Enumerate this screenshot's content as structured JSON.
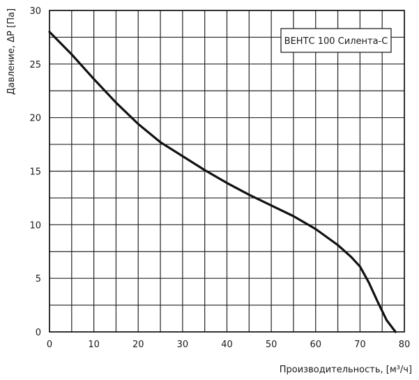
{
  "chart_data": {
    "type": "line",
    "title": "",
    "xlabel": "Производительность, [м³/ч]",
    "ylabel": "Давление, ΔP [Па]",
    "xlim": [
      0,
      80
    ],
    "ylim": [
      0,
      30
    ],
    "x_ticks": [
      0,
      10,
      20,
      30,
      40,
      50,
      60,
      70,
      80
    ],
    "y_ticks": [
      0,
      5,
      10,
      15,
      20,
      25,
      30
    ],
    "x_minor_step": 5,
    "y_minor_step": 2.5,
    "grid": true,
    "legend_position": "top-right",
    "legend_text": "ВЕНТС 100 Силента-С",
    "series": [
      {
        "x": [
          0,
          5,
          10,
          15,
          20,
          25,
          30,
          35,
          40,
          45,
          50,
          55,
          60,
          65,
          68,
          70,
          72,
          74,
          76,
          78
        ],
        "y": [
          28,
          25.9,
          23.6,
          21.4,
          19.4,
          17.7,
          16.4,
          15.1,
          13.9,
          12.8,
          11.8,
          10.8,
          9.6,
          8.1,
          7.0,
          6.1,
          4.6,
          2.8,
          1.1,
          0
        ]
      }
    ],
    "colors": {
      "line": "#111111",
      "grid": "#222222",
      "axis": "#000000"
    }
  }
}
